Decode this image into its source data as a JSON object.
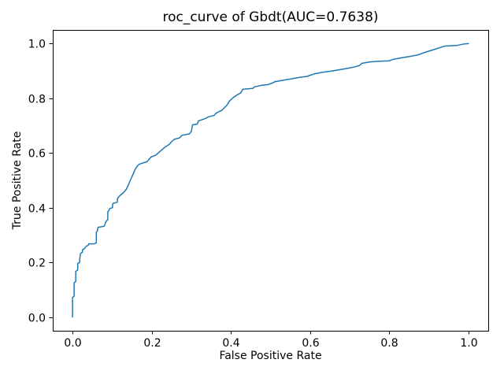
{
  "figure": {
    "background": "#ffffff",
    "text_color": "#000000",
    "spine_color": "#000000"
  },
  "chart_data": {
    "type": "line",
    "title": "roc_curve of Gbdt(AUC=0.7638)",
    "xlabel": "False Positive Rate",
    "ylabel": "True Positive Rate",
    "auc": 0.7638,
    "xlim": [
      -0.05,
      1.05
    ],
    "ylim": [
      -0.05,
      1.05
    ],
    "xticks": [
      0.0,
      0.2,
      0.4,
      0.6,
      0.8,
      1.0
    ],
    "yticks": [
      0.0,
      0.2,
      0.4,
      0.6,
      0.8,
      1.0
    ],
    "xtick_labels": [
      "0.0",
      "0.2",
      "0.4",
      "0.6",
      "0.8",
      "1.0"
    ],
    "ytick_labels": [
      "0.0",
      "0.2",
      "0.4",
      "0.6",
      "0.8",
      "1.0"
    ],
    "grid": false,
    "legend": null,
    "line_color": "#1f77b4",
    "line_width": 1.5,
    "series": [
      {
        "name": "roc_curve",
        "points": [
          [
            0.0,
            0.0
          ],
          [
            0.0,
            0.072
          ],
          [
            0.004,
            0.076
          ],
          [
            0.004,
            0.125
          ],
          [
            0.008,
            0.13
          ],
          [
            0.008,
            0.167
          ],
          [
            0.013,
            0.172
          ],
          [
            0.013,
            0.196
          ],
          [
            0.018,
            0.2
          ],
          [
            0.018,
            0.212
          ],
          [
            0.02,
            0.232
          ],
          [
            0.025,
            0.238
          ],
          [
            0.025,
            0.246
          ],
          [
            0.03,
            0.25
          ],
          [
            0.034,
            0.258
          ],
          [
            0.04,
            0.263
          ],
          [
            0.041,
            0.268
          ],
          [
            0.055,
            0.268
          ],
          [
            0.06,
            0.272
          ],
          [
            0.06,
            0.31
          ],
          [
            0.063,
            0.316
          ],
          [
            0.064,
            0.328
          ],
          [
            0.08,
            0.332
          ],
          [
            0.083,
            0.345
          ],
          [
            0.086,
            0.352
          ],
          [
            0.089,
            0.357
          ],
          [
            0.089,
            0.385
          ],
          [
            0.092,
            0.39
          ],
          [
            0.094,
            0.397
          ],
          [
            0.101,
            0.4
          ],
          [
            0.101,
            0.412
          ],
          [
            0.103,
            0.416
          ],
          [
            0.113,
            0.42
          ],
          [
            0.114,
            0.435
          ],
          [
            0.12,
            0.445
          ],
          [
            0.128,
            0.454
          ],
          [
            0.136,
            0.468
          ],
          [
            0.14,
            0.48
          ],
          [
            0.146,
            0.5
          ],
          [
            0.152,
            0.52
          ],
          [
            0.158,
            0.54
          ],
          [
            0.165,
            0.555
          ],
          [
            0.17,
            0.56
          ],
          [
            0.188,
            0.568
          ],
          [
            0.198,
            0.585
          ],
          [
            0.21,
            0.592
          ],
          [
            0.222,
            0.607
          ],
          [
            0.234,
            0.622
          ],
          [
            0.244,
            0.631
          ],
          [
            0.25,
            0.641
          ],
          [
            0.257,
            0.65
          ],
          [
            0.27,
            0.655
          ],
          [
            0.277,
            0.665
          ],
          [
            0.295,
            0.67
          ],
          [
            0.3,
            0.679
          ],
          [
            0.303,
            0.703
          ],
          [
            0.315,
            0.706
          ],
          [
            0.318,
            0.717
          ],
          [
            0.337,
            0.727
          ],
          [
            0.343,
            0.732
          ],
          [
            0.357,
            0.737
          ],
          [
            0.363,
            0.746
          ],
          [
            0.37,
            0.751
          ],
          [
            0.377,
            0.756
          ],
          [
            0.383,
            0.765
          ],
          [
            0.39,
            0.775
          ],
          [
            0.396,
            0.789
          ],
          [
            0.403,
            0.799
          ],
          [
            0.408,
            0.805
          ],
          [
            0.415,
            0.812
          ],
          [
            0.425,
            0.82
          ],
          [
            0.43,
            0.833
          ],
          [
            0.455,
            0.836
          ],
          [
            0.46,
            0.842
          ],
          [
            0.47,
            0.845
          ],
          [
            0.48,
            0.848
          ],
          [
            0.493,
            0.85
          ],
          [
            0.505,
            0.856
          ],
          [
            0.512,
            0.861
          ],
          [
            0.532,
            0.866
          ],
          [
            0.552,
            0.871
          ],
          [
            0.572,
            0.876
          ],
          [
            0.592,
            0.88
          ],
          [
            0.612,
            0.89
          ],
          [
            0.632,
            0.895
          ],
          [
            0.652,
            0.899
          ],
          [
            0.672,
            0.904
          ],
          [
            0.692,
            0.909
          ],
          [
            0.711,
            0.914
          ],
          [
            0.725,
            0.92
          ],
          [
            0.731,
            0.928
          ],
          [
            0.751,
            0.933
          ],
          [
            0.771,
            0.935
          ],
          [
            0.8,
            0.937
          ],
          [
            0.811,
            0.943
          ],
          [
            0.831,
            0.948
          ],
          [
            0.851,
            0.953
          ],
          [
            0.871,
            0.958
          ],
          [
            0.89,
            0.968
          ],
          [
            0.91,
            0.977
          ],
          [
            0.93,
            0.986
          ],
          [
            0.94,
            0.991
          ],
          [
            0.97,
            0.993
          ],
          [
            0.99,
            0.999
          ],
          [
            1.0,
            1.0
          ]
        ]
      }
    ]
  }
}
